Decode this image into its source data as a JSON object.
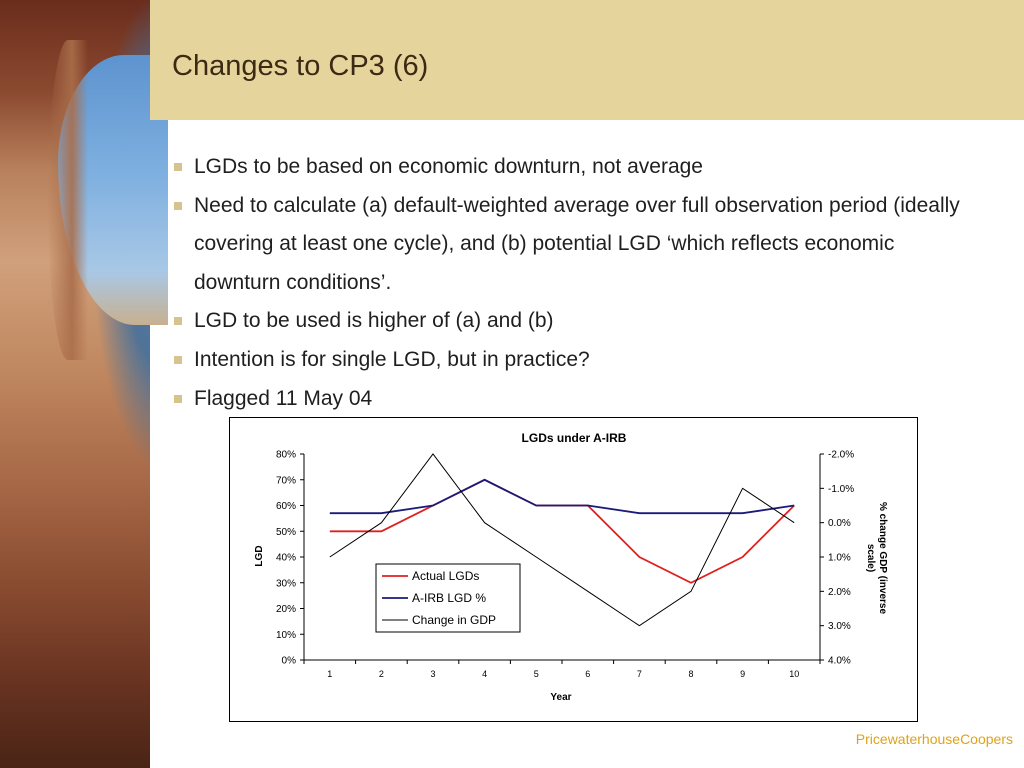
{
  "slide": {
    "title": "Changes to CP3 (6)",
    "accent_color": "#e6d49d",
    "bullets": [
      "LGDs to be based on economic downturn, not average",
      "Need to calculate (a) default-weighted average over full observation period (ideally covering at least one cycle), and (b) potential LGD ‘which reflects economic downturn conditions’.",
      "LGD to be used is higher of (a) and (b)",
      "Intention is for single LGD, but in practice?",
      "Flagged 11 May 04"
    ],
    "footer": "PricewaterhouseCoopers",
    "footer_color": "#e0a21a"
  },
  "chart_data": {
    "type": "line",
    "title": "LGDs under A-IRB",
    "xlabel": "Year",
    "ylabel": "LGD",
    "y2label": "% change GDP (inverse scale)",
    "categories": [
      1,
      2,
      3,
      4,
      5,
      6,
      7,
      8,
      9,
      10
    ],
    "x_ticks": [
      "1",
      "2",
      "3",
      "4",
      "5",
      "6",
      "7",
      "8",
      "9",
      "10"
    ],
    "ylim": [
      0,
      80
    ],
    "y_ticks": [
      "0%",
      "10%",
      "20%",
      "30%",
      "40%",
      "50%",
      "60%",
      "70%",
      "80%"
    ],
    "y2lim": [
      4.0,
      -2.0
    ],
    "y2_inverse": true,
    "y2_ticks": [
      "-2.0%",
      "-1.0%",
      "0.0%",
      "1.0%",
      "2.0%",
      "3.0%",
      "4.0%"
    ],
    "grid": false,
    "legend_position": "lower-left",
    "series": [
      {
        "name": "Actual LGDs",
        "axis": "left",
        "color": "#e02020",
        "values": [
          50,
          50,
          60,
          70,
          60,
          60,
          40,
          30,
          40,
          60
        ]
      },
      {
        "name": "A-IRB LGD %",
        "axis": "left",
        "color": "#1a1a7a",
        "values": [
          57,
          57,
          60,
          70,
          60,
          60,
          57,
          57,
          57,
          60
        ]
      },
      {
        "name": "Change in GDP",
        "axis": "right",
        "color": "#000000",
        "values": [
          1.0,
          0.0,
          -2.0,
          0.0,
          1.0,
          2.0,
          3.0,
          2.0,
          -1.0,
          0.0
        ]
      }
    ]
  }
}
